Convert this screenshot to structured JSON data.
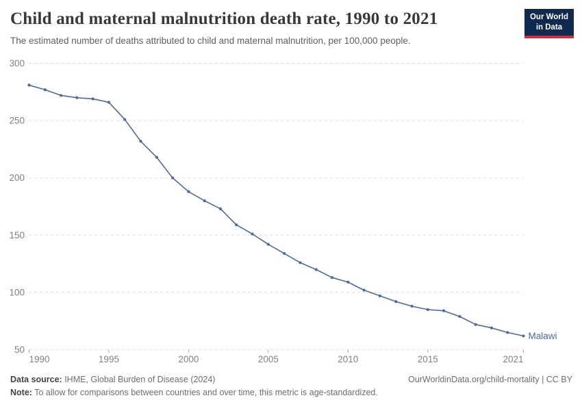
{
  "header": {
    "title": "Child and maternal malnutrition death rate, 1990 to 2021",
    "subtitle": "The estimated number of deaths attributed to child and maternal malnutrition, per 100,000 people.",
    "logo": {
      "line1": "Our World",
      "line2": "in Data",
      "bg_color": "#102950",
      "accent_color": "#cf2d3a"
    }
  },
  "chart_data": {
    "type": "line",
    "title": "Child and maternal malnutrition death rate, 1990 to 2021",
    "xlabel": "",
    "ylabel": "",
    "xlim": [
      1990,
      2021
    ],
    "ylim": [
      50,
      300
    ],
    "x_ticks": [
      1990,
      1995,
      2000,
      2005,
      2010,
      2015,
      2021
    ],
    "y_ticks": [
      50,
      100,
      150,
      200,
      250,
      300
    ],
    "grid": "horizontal-dashed",
    "legend_position": "end-of-line-label",
    "series": [
      {
        "name": "Malawi",
        "color": "#4C6A9C",
        "x": [
          1990,
          1991,
          1992,
          1993,
          1994,
          1995,
          1996,
          1997,
          1998,
          1999,
          2000,
          2001,
          2002,
          2003,
          2004,
          2005,
          2006,
          2007,
          2008,
          2009,
          2010,
          2011,
          2012,
          2013,
          2014,
          2015,
          2016,
          2017,
          2018,
          2019,
          2020,
          2021
        ],
        "values": [
          281,
          277,
          272,
          270,
          269,
          266,
          251,
          232,
          218,
          200,
          188,
          180,
          173,
          159,
          151,
          142,
          134,
          126,
          120,
          113,
          109,
          102,
          97,
          92,
          88,
          85,
          84,
          79,
          72,
          69,
          65,
          62
        ]
      }
    ],
    "colors": {
      "grid": "#dcdcdc",
      "tick_label": "#808080",
      "tick_mark": "#a8a8a8"
    }
  },
  "footer": {
    "datasource_label": "Data source:",
    "datasource_value": " IHME, Global Burden of Disease (2024)",
    "attribution": "OurWorldinData.org/child-mortality | CC BY",
    "note_label": "Note:",
    "note_value": " To allow for comparisons between countries and over time, this metric is age-standardized."
  }
}
